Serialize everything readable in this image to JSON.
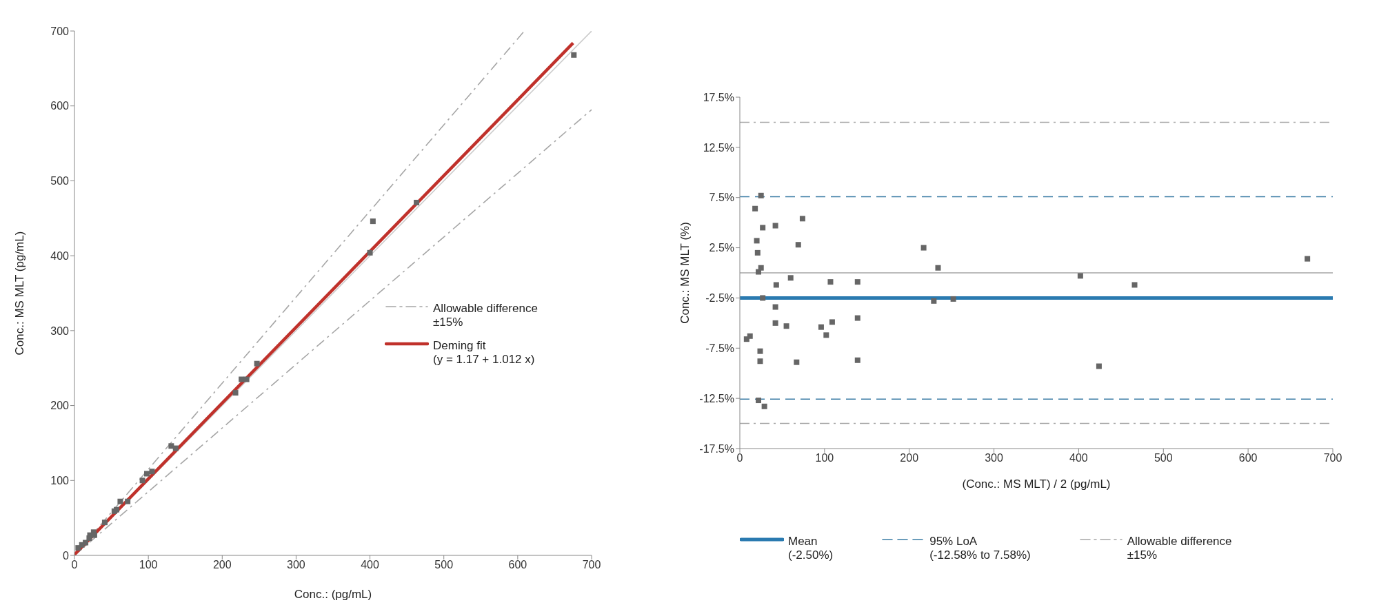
{
  "chart_data": [
    {
      "type": "scatter",
      "xlabel": "Conc.: (pg/mL)",
      "ylabel": "Conc.: MS MLT (pg/mL)",
      "xlim": [
        0,
        700
      ],
      "ylim": [
        0,
        700
      ],
      "xticks": [
        0,
        100,
        200,
        300,
        400,
        500,
        600,
        700
      ],
      "yticks": [
        0,
        100,
        200,
        300,
        400,
        500,
        600,
        700
      ],
      "legend": "right",
      "series": [
        {
          "marker": "square",
          "color": "#666666",
          "x": [
            5,
            10,
            15,
            20,
            21,
            26,
            27,
            41,
            54,
            57,
            62,
            72,
            92,
            98,
            105,
            131,
            137,
            218,
            226,
            233,
            247,
            400,
            404,
            463,
            676
          ],
          "values": [
            10,
            14,
            17,
            23,
            27,
            31,
            27,
            44,
            59,
            61,
            72,
            72,
            100,
            109,
            112,
            146,
            143,
            217,
            235,
            235,
            256,
            404,
            446,
            471,
            668
          ]
        },
        {
          "type": "line",
          "marker": "none",
          "name": "Allowable difference\n±15%",
          "color": "#a6a6a6",
          "line_style": "dashdot",
          "x": [
            0,
            609
          ],
          "values": [
            0,
            700
          ]
        },
        {
          "type": "line",
          "marker": "none",
          "color": "#a6a6a6",
          "line_style": "dashdot",
          "x": [
            0,
            700
          ],
          "values": [
            0,
            595
          ]
        },
        {
          "type": "line",
          "marker": "none",
          "color": "#cccccc",
          "line_style": "solid",
          "x": [
            0,
            700
          ],
          "values": [
            0,
            700
          ]
        },
        {
          "type": "line",
          "marker": "none",
          "name": "Deming fit\n(y = 1.17 + 1.012 x)",
          "color": "#c0312b",
          "line_style": "solid",
          "x": [
            0,
            675
          ],
          "values": [
            1,
            684
          ]
        }
      ]
    },
    {
      "type": "scatter",
      "xlabel": "(Conc.: MS MLT) / 2 (pg/mL)",
      "ylabel": "Conc.: MS MLT (%)",
      "xlim": [
        0,
        700
      ],
      "ylim": [
        -17.5,
        17.5
      ],
      "xticks": [
        0,
        100,
        200,
        300,
        400,
        500,
        600,
        700
      ],
      "yticks": [
        {
          "value": -17.5,
          "label": "-17.5%"
        },
        {
          "value": -12.5,
          "label": "-12.5%"
        },
        {
          "value": -7.5,
          "label": "-7.5%"
        },
        {
          "value": -2.5,
          "label": "-2.5%"
        },
        {
          "value": 2.5,
          "label": "2.5%"
        },
        {
          "value": 7.5,
          "label": "7.5%"
        },
        {
          "value": 12.5,
          "label": "12.5%"
        },
        {
          "value": 17.5,
          "label": "17.5%"
        }
      ],
      "legend": "bottom",
      "series": [
        {
          "marker": "square",
          "color": "#666666",
          "x": [
            8,
            12,
            18,
            20,
            21,
            22,
            25,
            25,
            27,
            27,
            24,
            24,
            22,
            29,
            42,
            43,
            42,
            42,
            55,
            60,
            67,
            69,
            74,
            96,
            102,
            107,
            109,
            139,
            139,
            139,
            217,
            229,
            234,
            252,
            402,
            424,
            466,
            670
          ],
          "values": [
            -6.6,
            -6.3,
            6.4,
            3.2,
            2,
            0.1,
            0.5,
            7.7,
            4.5,
            -2.5,
            -7.8,
            -8.8,
            -12.7,
            -13.3,
            4.7,
            -1.2,
            -3.4,
            -5,
            -5.3,
            -0.5,
            -8.9,
            2.8,
            5.4,
            -5.4,
            -6.2,
            -0.9,
            -4.9,
            -0.9,
            -4.5,
            -8.7,
            2.5,
            -2.8,
            0.5,
            -2.6,
            -0.3,
            -9.3,
            -1.2,
            1.4
          ]
        }
      ],
      "ref_lines": [
        {
          "axis": "y",
          "value": 0,
          "color": "#a6a6a6",
          "line_style": "solid"
        },
        {
          "axis": "y",
          "value": -2.5,
          "label": "Mean\n(-2.50%)",
          "color": "#2a7ab0",
          "line_style": "solid"
        },
        {
          "axis": "y",
          "value": 7.58,
          "label": "95% LoA\n(-12.58% to 7.58%)",
          "color": "#3a7ca5",
          "line_style": "dashed"
        },
        {
          "axis": "y",
          "value": -12.58,
          "color": "#3a7ca5",
          "line_style": "dashed"
        },
        {
          "axis": "y",
          "value": 15,
          "label": "Allowable difference\n±15%",
          "color": "#a6a6a6",
          "line_style": "dashdot"
        },
        {
          "axis": "y",
          "value": -15,
          "color": "#a6a6a6",
          "line_style": "dashdot"
        }
      ]
    }
  ]
}
